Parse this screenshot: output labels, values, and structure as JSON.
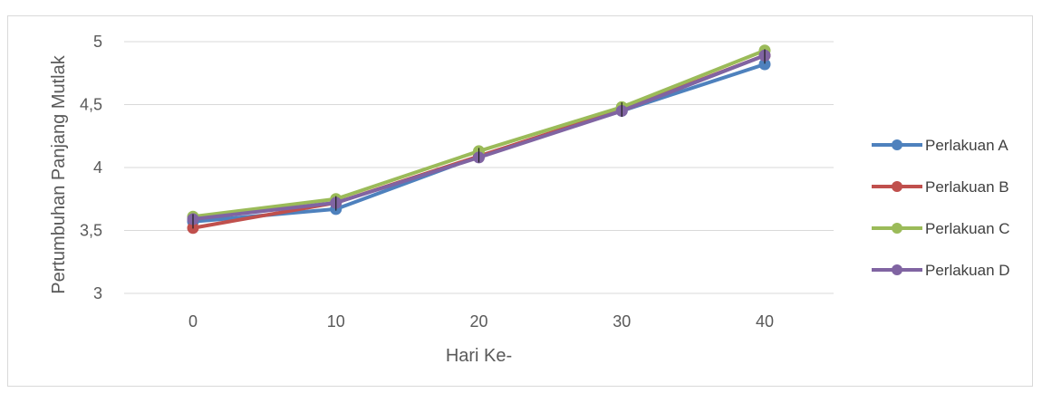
{
  "chart_data": {
    "type": "line",
    "title": "",
    "xlabel": "Hari Ke-",
    "ylabel": "Pertumbuhan Panjang Mutlak",
    "x": [
      0,
      10,
      20,
      30,
      40
    ],
    "x_tick_labels": [
      "0",
      "10",
      "20",
      "30",
      "40"
    ],
    "ylim": [
      3,
      5
    ],
    "y_ticks": [
      3,
      3.5,
      4,
      4.5,
      5
    ],
    "y_tick_labels": [
      "3",
      "3,5",
      "4",
      "4,5",
      "5"
    ],
    "grid": true,
    "legend_position": "right",
    "series": [
      {
        "name": "Perlakuan A",
        "color": "#4e81bd",
        "values": [
          3.57,
          3.67,
          4.09,
          4.45,
          4.82
        ]
      },
      {
        "name": "Perlakuan B",
        "color": "#c0504d",
        "values": [
          3.52,
          3.72,
          4.09,
          4.46,
          4.89
        ]
      },
      {
        "name": "Perlakuan C",
        "color": "#9bbb59",
        "values": [
          3.61,
          3.75,
          4.13,
          4.48,
          4.93
        ]
      },
      {
        "name": "Perlakuan D",
        "color": "#8064a2",
        "values": [
          3.59,
          3.72,
          4.08,
          4.45,
          4.89
        ]
      }
    ]
  }
}
